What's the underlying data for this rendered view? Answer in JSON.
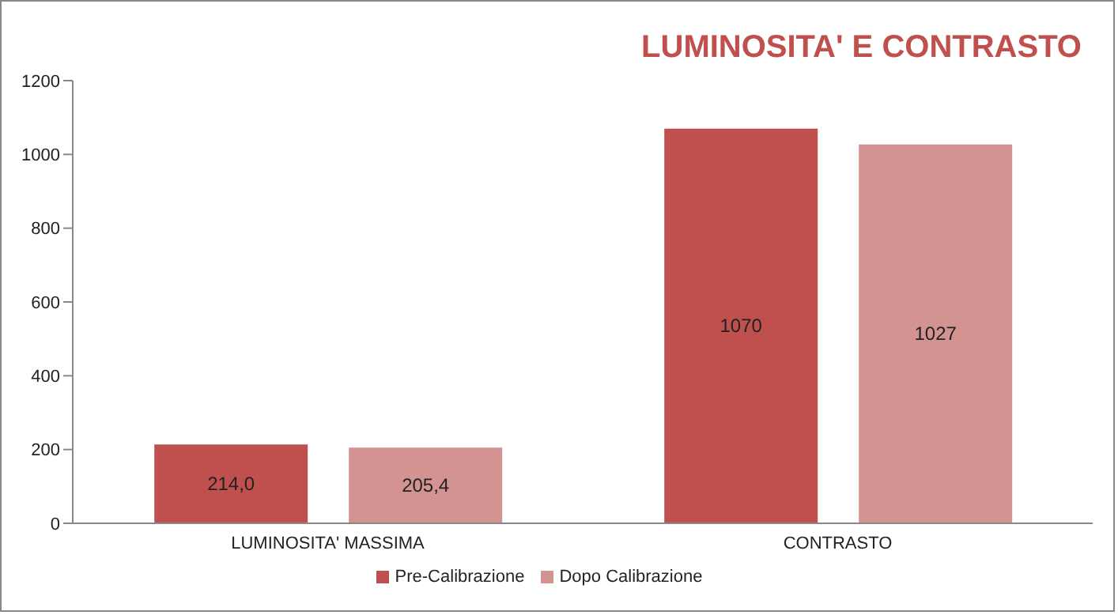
{
  "chart_data": {
    "type": "bar",
    "title": "LUMINOSITA' E CONTRASTO",
    "categories": [
      "LUMINOSITA' MASSIMA",
      "CONTRASTO"
    ],
    "series": [
      {
        "name": "Pre-Calibrazione",
        "color": "#c0504d",
        "values": [
          214.0,
          1070
        ],
        "value_labels": [
          "214,0",
          "1070"
        ]
      },
      {
        "name": "Dopo Calibrazione",
        "color": "#d39390",
        "values": [
          205.4,
          1027
        ],
        "value_labels": [
          "205,4",
          "1027"
        ]
      }
    ],
    "ylim": [
      0,
      1200
    ],
    "yticks": [
      0,
      200,
      400,
      600,
      800,
      1000,
      1200
    ],
    "grid": false,
    "legend": "bottom"
  }
}
